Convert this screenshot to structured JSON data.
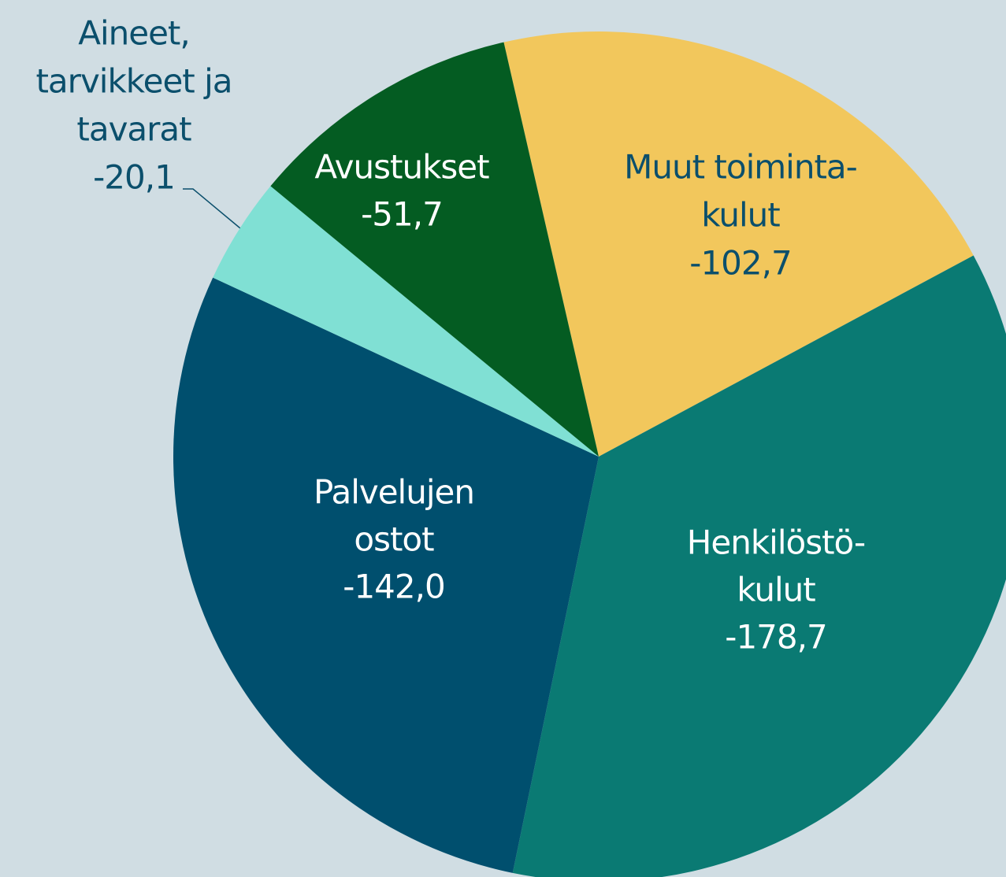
{
  "chart_data": {
    "type": "pie",
    "categories": [
      [
        "Muut toiminta-",
        "kulut"
      ],
      [
        "Henkilöstö-",
        "kulut"
      ],
      [
        "Palvelujen",
        "ostot"
      ],
      [
        "Aineet,",
        "tarvikkeet ja",
        "tavarat"
      ],
      [
        "Avustukset"
      ]
    ],
    "values": [
      -102.7,
      -178.7,
      -142.0,
      -20.1,
      -51.7
    ],
    "value_labels": [
      "-102,7",
      "-178,7",
      "-142,0",
      "-20,1",
      "-51,7"
    ],
    "colors": [
      "#f2c75c",
      "#0a7a73",
      "#004f6e",
      "#80e0d4",
      "#045c22"
    ]
  }
}
